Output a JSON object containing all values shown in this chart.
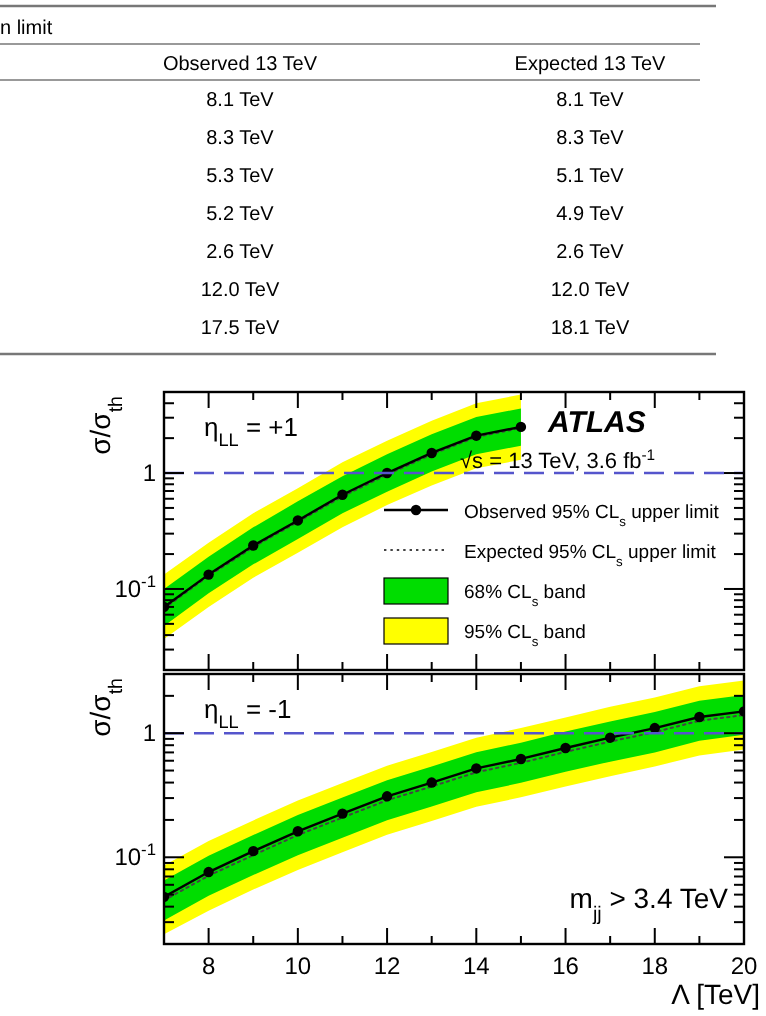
{
  "chart_data": [
    {
      "type": "other",
      "title": "n limit",
      "categories": [
        "Observed 13 TeV",
        "Expected 13 TeV"
      ],
      "cell_labels": [
        [
          "8.1 TeV",
          "8.1 TeV"
        ],
        [
          "8.3 TeV",
          "8.3 TeV"
        ],
        [
          "5.3 TeV",
          "5.1 TeV"
        ],
        [
          "5.2 TeV",
          "4.9 TeV"
        ],
        [
          "2.6 TeV",
          "2.6 TeV"
        ],
        [
          "12.0 TeV",
          "12.0 TeV"
        ],
        [
          "17.5 TeV",
          "18.1 TeV"
        ]
      ]
    },
    {
      "type": "line",
      "ylabel": "σ/σ$_{th}$",
      "log": "y",
      "xlim": [
        7,
        20
      ],
      "ylim": [
        0.02,
        5
      ],
      "tick_labels": "y",
      "legend": "bottom right",
      "x": [
        7,
        8,
        9,
        10,
        11,
        12,
        13,
        14,
        15
      ],
      "xticks": [
        {
          "value": 7,
          "label": null
        },
        8,
        {
          "value": 9,
          "label": null
        },
        10,
        {
          "value": 11,
          "label": null
        },
        12,
        {
          "value": 13,
          "label": null
        },
        14,
        {
          "value": 15,
          "label": null
        },
        16,
        {
          "value": 17,
          "label": null
        },
        18,
        {
          "value": 19,
          "label": null
        },
        20
      ],
      "yticks": [
        {
          "value": 0.02,
          "label": null
        },
        {
          "value": 0.03,
          "label": null
        },
        {
          "value": 0.04,
          "label": null
        },
        {
          "value": 0.05,
          "label": null
        },
        {
          "value": 0.06,
          "label": null
        },
        {
          "value": 0.07,
          "label": null
        },
        {
          "value": 0.08,
          "label": null
        },
        {
          "value": 0.09,
          "label": null
        },
        {
          "value": 0.1,
          "label": "10$^{-1}$"
        },
        {
          "value": 0.2,
          "label": null
        },
        {
          "value": 0.3,
          "label": null
        },
        {
          "value": 0.4,
          "label": null
        },
        {
          "value": 0.5,
          "label": null
        },
        {
          "value": 0.6,
          "label": null
        },
        {
          "value": 0.7,
          "label": null
        },
        {
          "value": 0.8,
          "label": null
        },
        {
          "value": 0.9,
          "label": null
        },
        {
          "value": 1,
          "label": "1"
        },
        {
          "value": 2,
          "label": null
        },
        {
          "value": 3,
          "label": null
        },
        {
          "value": 4,
          "label": null
        }
      ],
      "ref_lines": [
        {
          "axis": "y",
          "value": 1,
          "color": "#5555cc",
          "line_style": "dashed"
        }
      ],
      "annotations": [
        "η$_{LL}$ = +1",
        "ATLAS",
        "√s = 13 TeV, 3.6 fb$^{-1}$"
      ],
      "series": [
        {
          "name": "95% CL$_{s}$ band",
          "type": "area",
          "color": "#ffff00",
          "values": [
            null,
            null,
            null,
            null,
            null,
            null,
            null,
            null,
            null
          ],
          "lower": [
            0.037,
            0.07,
            0.125,
            0.205,
            0.34,
            0.53,
            0.78,
            1.1,
            1.3
          ],
          "upper": [
            0.133,
            0.25,
            0.45,
            0.74,
            1.24,
            1.9,
            2.83,
            4.0,
            4.75
          ]
        },
        {
          "name": "68% CL$_{s}$ band",
          "type": "area",
          "color": "#00dd00",
          "values": [
            null,
            null,
            null,
            null,
            null,
            null,
            null,
            null,
            null
          ],
          "lower": [
            0.048,
            0.092,
            0.163,
            0.27,
            0.45,
            0.69,
            1.03,
            1.45,
            1.72
          ],
          "upper": [
            0.1,
            0.19,
            0.34,
            0.57,
            0.94,
            1.45,
            2.16,
            3.05,
            3.6
          ]
        },
        {
          "name": "Expected 95% CL$_{s}$ upper limit",
          "type": "line",
          "color": "#444444",
          "line_style": "dotted",
          "marker": "none",
          "values": [
            0.068,
            0.13,
            0.23,
            0.38,
            0.63,
            0.97,
            1.45,
            2.05,
            2.45
          ]
        },
        {
          "name": "Observed 95% CL$_{s}$ upper limit",
          "type": "line",
          "color": "#000000",
          "line_style": "solid",
          "marker": "circle",
          "values": [
            0.07,
            0.133,
            0.237,
            0.39,
            0.65,
            1.0,
            1.49,
            2.1,
            2.5
          ]
        }
      ]
    },
    {
      "type": "line",
      "ylabel": "σ/σ$_{th}$",
      "xlabel": "Λ [TeV]",
      "log": "y",
      "xlim": [
        7,
        20
      ],
      "ylim": [
        0.02,
        3
      ],
      "x": [
        7,
        8,
        9,
        10,
        11,
        12,
        13,
        14,
        15,
        16,
        17,
        18,
        19,
        20
      ],
      "xticks": [
        {
          "value": 7,
          "label": null
        },
        8,
        {
          "value": 9,
          "label": null
        },
        10,
        {
          "value": 11,
          "label": null
        },
        12,
        {
          "value": 13,
          "label": null
        },
        14,
        {
          "value": 15,
          "label": null
        },
        16,
        {
          "value": 17,
          "label": null
        },
        18,
        {
          "value": 19,
          "label": null
        },
        20
      ],
      "yticks": [
        {
          "value": 0.02,
          "label": null
        },
        {
          "value": 0.03,
          "label": null
        },
        {
          "value": 0.04,
          "label": null
        },
        {
          "value": 0.05,
          "label": null
        },
        {
          "value": 0.06,
          "label": null
        },
        {
          "value": 0.07,
          "label": null
        },
        {
          "value": 0.08,
          "label": null
        },
        {
          "value": 0.09,
          "label": null
        },
        {
          "value": 0.1,
          "label": "10$^{-1}$"
        },
        {
          "value": 0.2,
          "label": null
        },
        {
          "value": 0.3,
          "label": null
        },
        {
          "value": 0.4,
          "label": null
        },
        {
          "value": 0.5,
          "label": null
        },
        {
          "value": 0.6,
          "label": null
        },
        {
          "value": 0.7,
          "label": null
        },
        {
          "value": 0.8,
          "label": null
        },
        {
          "value": 0.9,
          "label": null
        },
        {
          "value": 1,
          "label": "1"
        },
        {
          "value": 2,
          "label": null
        },
        {
          "value": 3,
          "label": null
        }
      ],
      "ref_lines": [
        {
          "axis": "y",
          "value": 1,
          "color": "#5555cc",
          "line_style": "dashed"
        }
      ],
      "annotations": [
        "η$_{LL}$ = -1",
        "m$_{jj}$ > 3.4 TeV"
      ],
      "series": [
        {
          "type": "area",
          "color": "#ffff00",
          "values": [
            null,
            null,
            null,
            null,
            null,
            null,
            null,
            null,
            null,
            null,
            null,
            null,
            null,
            null
          ],
          "lower": [
            0.024,
            0.037,
            0.055,
            0.079,
            0.11,
            0.152,
            0.196,
            0.255,
            0.304,
            0.372,
            0.45,
            0.54,
            0.66,
            0.74
          ],
          "upper": [
            0.086,
            0.135,
            0.198,
            0.287,
            0.397,
            0.547,
            0.707,
            0.92,
            1.1,
            1.34,
            1.63,
            1.94,
            2.39,
            2.66
          ]
        },
        {
          "type": "area",
          "color": "#00dd00",
          "values": [
            null,
            null,
            null,
            null,
            null,
            null,
            null,
            null,
            null,
            null,
            null,
            null,
            null,
            null
          ],
          "lower": [
            0.031,
            0.049,
            0.072,
            0.104,
            0.144,
            0.199,
            0.257,
            0.334,
            0.398,
            0.488,
            0.59,
            0.7,
            0.87,
            0.97
          ],
          "upper": [
            0.065,
            0.103,
            0.151,
            0.219,
            0.303,
            0.418,
            0.539,
            0.702,
            0.837,
            1.03,
            1.24,
            1.48,
            1.83,
            2.03
          ]
        },
        {
          "type": "line",
          "color": "#444444",
          "line_style": "dotted",
          "marker": "none",
          "values": [
            0.045,
            0.071,
            0.104,
            0.151,
            0.209,
            0.288,
            0.372,
            0.484,
            0.577,
            0.707,
            0.856,
            1.02,
            1.26,
            1.4
          ]
        },
        {
          "type": "line",
          "color": "#000000",
          "line_style": "solid",
          "marker": "circle",
          "values": [
            0.048,
            0.076,
            0.112,
            0.162,
            0.225,
            0.31,
            0.4,
            0.52,
            0.62,
            0.76,
            0.92,
            1.1,
            1.35,
            1.5
          ]
        }
      ]
    }
  ]
}
